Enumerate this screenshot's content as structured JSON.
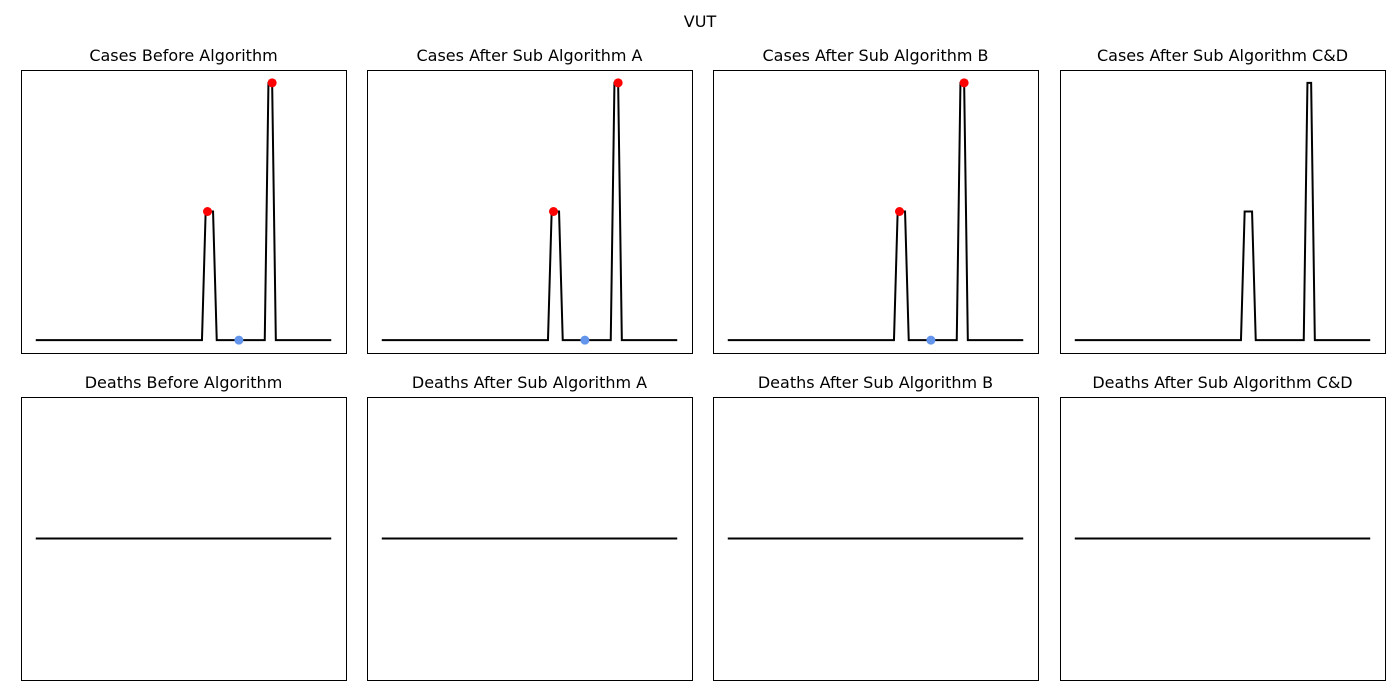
{
  "figure": {
    "suptitle": "VUT"
  },
  "colors": {
    "line": "#000000",
    "peak": "#ff0000",
    "trough": "#6495ed",
    "frame": "#000000"
  },
  "chart_data": [
    {
      "type": "line",
      "title": "Cases Before Algorithm",
      "x": [
        0,
        45,
        46,
        47,
        48,
        49,
        62,
        63,
        64,
        65,
        80
      ],
      "y": [
        0,
        0,
        50,
        50,
        50,
        0,
        0,
        100,
        100,
        0,
        0
      ],
      "ylim": [
        -5,
        105
      ],
      "xlim": [
        -4,
        84
      ],
      "peaks": [
        {
          "x": 46.5,
          "y": 50
        },
        {
          "x": 64,
          "y": 100
        }
      ],
      "troughs": [
        {
          "x": 55,
          "y": 0
        }
      ],
      "grid": false,
      "ticks": false
    },
    {
      "type": "line",
      "title": "Cases After Sub Algorithm A",
      "x": [
        0,
        45,
        46,
        47,
        48,
        49,
        62,
        63,
        64,
        65,
        80
      ],
      "y": [
        0,
        0,
        50,
        50,
        50,
        0,
        0,
        100,
        100,
        0,
        0
      ],
      "ylim": [
        -5,
        105
      ],
      "xlim": [
        -4,
        84
      ],
      "peaks": [
        {
          "x": 46.5,
          "y": 50
        },
        {
          "x": 64,
          "y": 100
        }
      ],
      "troughs": [
        {
          "x": 55,
          "y": 0
        }
      ],
      "grid": false,
      "ticks": false
    },
    {
      "type": "line",
      "title": "Cases After Sub Algorithm B",
      "x": [
        0,
        45,
        46,
        47,
        48,
        49,
        62,
        63,
        64,
        65,
        80
      ],
      "y": [
        0,
        0,
        50,
        50,
        50,
        0,
        0,
        100,
        100,
        0,
        0
      ],
      "ylim": [
        -5,
        105
      ],
      "xlim": [
        -4,
        84
      ],
      "peaks": [
        {
          "x": 46.5,
          "y": 50
        },
        {
          "x": 64,
          "y": 100
        }
      ],
      "troughs": [
        {
          "x": 55,
          "y": 0
        }
      ],
      "grid": false,
      "ticks": false
    },
    {
      "type": "line",
      "title": "Cases After Sub Algorithm C&D",
      "x": [
        0,
        45,
        46,
        47,
        48,
        49,
        62,
        63,
        64,
        65,
        80
      ],
      "y": [
        0,
        0,
        50,
        50,
        50,
        0,
        0,
        100,
        100,
        0,
        0
      ],
      "ylim": [
        -5,
        105
      ],
      "xlim": [
        -4,
        84
      ],
      "peaks": [],
      "troughs": [],
      "grid": false,
      "ticks": false
    },
    {
      "type": "line",
      "title": "Deaths Before Algorithm",
      "x": [
        0,
        80
      ],
      "y": [
        0,
        0
      ],
      "ylim": [
        -0.055,
        0.055
      ],
      "xlim": [
        -4,
        84
      ],
      "peaks": [],
      "troughs": [],
      "grid": false,
      "ticks": false
    },
    {
      "type": "line",
      "title": "Deaths After Sub Algorithm A",
      "x": [
        0,
        80
      ],
      "y": [
        0,
        0
      ],
      "ylim": [
        -0.055,
        0.055
      ],
      "xlim": [
        -4,
        84
      ],
      "peaks": [],
      "troughs": [],
      "grid": false,
      "ticks": false
    },
    {
      "type": "line",
      "title": "Deaths After Sub Algorithm B",
      "x": [
        0,
        80
      ],
      "y": [
        0,
        0
      ],
      "ylim": [
        -0.055,
        0.055
      ],
      "xlim": [
        -4,
        84
      ],
      "peaks": [],
      "troughs": [],
      "grid": false,
      "ticks": false
    },
    {
      "type": "line",
      "title": "Deaths After Sub Algorithm C&D",
      "x": [
        0,
        80
      ],
      "y": [
        0,
        0
      ],
      "ylim": [
        -0.055,
        0.055
      ],
      "xlim": [
        -4,
        84
      ],
      "peaks": [],
      "troughs": [],
      "grid": false,
      "ticks": false
    }
  ]
}
